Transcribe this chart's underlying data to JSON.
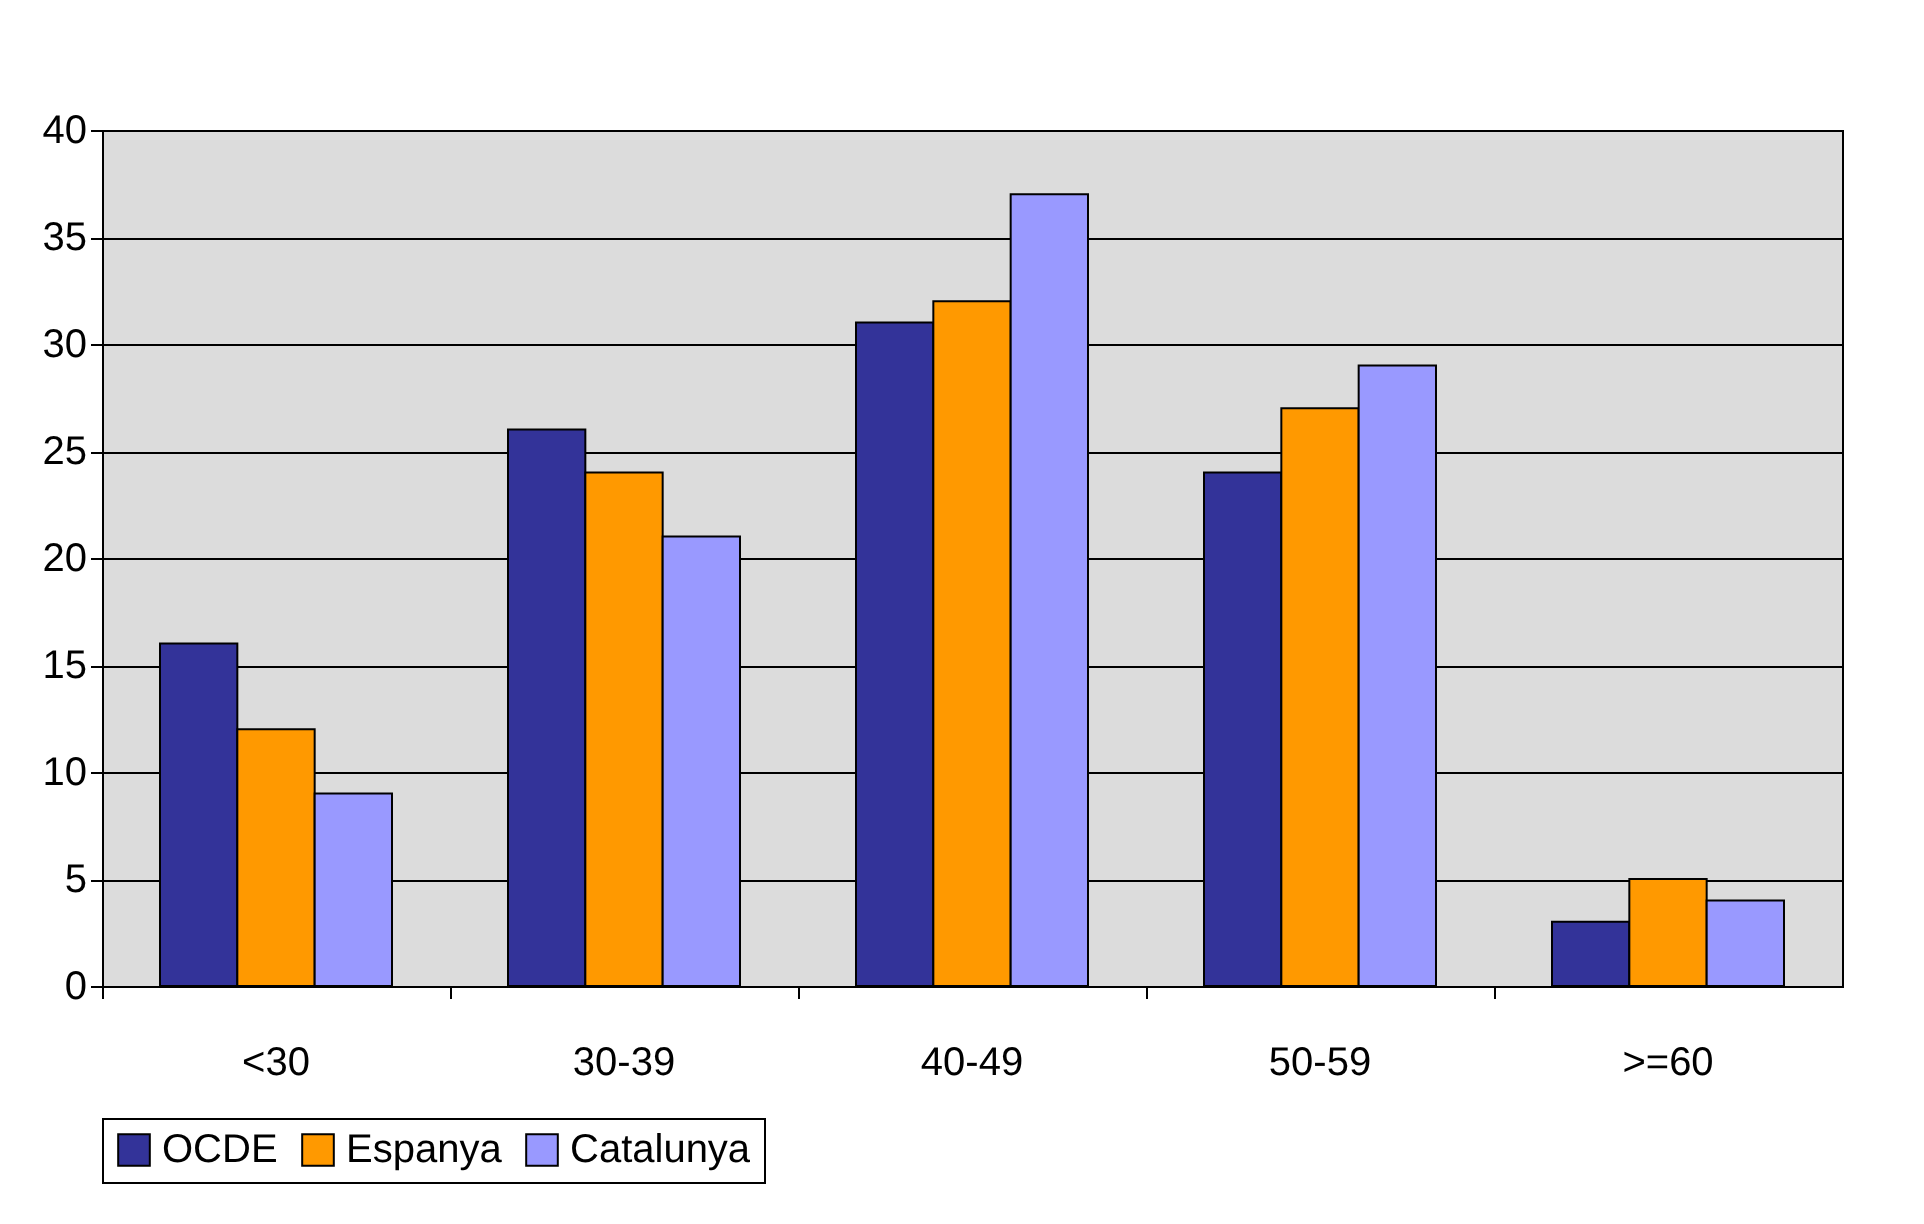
{
  "chart_data": {
    "type": "bar",
    "categories": [
      "<30",
      "30-39",
      "40-49",
      "50-59",
      ">=60"
    ],
    "series": [
      {
        "name": "OCDE",
        "color": "#333399",
        "values": [
          16,
          26,
          31,
          24,
          3
        ]
      },
      {
        "name": "Espanya",
        "color": "#ff9900",
        "values": [
          12,
          24,
          32,
          27,
          5
        ]
      },
      {
        "name": "Catalunya",
        "color": "#9999ff",
        "values": [
          9,
          21,
          37,
          29,
          4
        ]
      }
    ],
    "ylim": [
      0,
      40
    ],
    "yticks": [
      0,
      5,
      10,
      15,
      20,
      25,
      30,
      35,
      40
    ],
    "grid": "y",
    "legend": "bottom"
  }
}
